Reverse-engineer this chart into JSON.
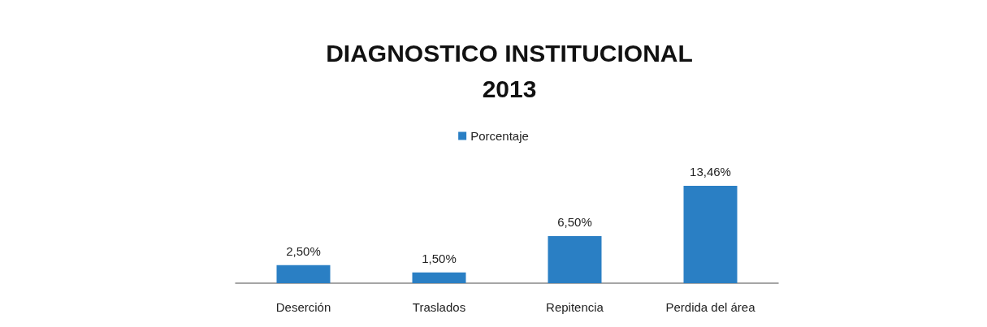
{
  "chart_data": {
    "type": "bar",
    "title": "DIAGNOSTICO INSTITUCIONAL\n2013",
    "categories": [
      "Deserción",
      "Traslados",
      "Repitencia",
      "Perdida del área"
    ],
    "series": [
      {
        "name": "Porcentaje",
        "color": "#2a7fc4",
        "values": [
          2.5,
          1.5,
          6.5,
          13.46
        ],
        "value_labels": [
          "2,50%",
          "1,50%",
          "6,50%",
          "13,46%"
        ]
      }
    ],
    "legend": "top",
    "grid": false,
    "tick_labels": "x"
  }
}
